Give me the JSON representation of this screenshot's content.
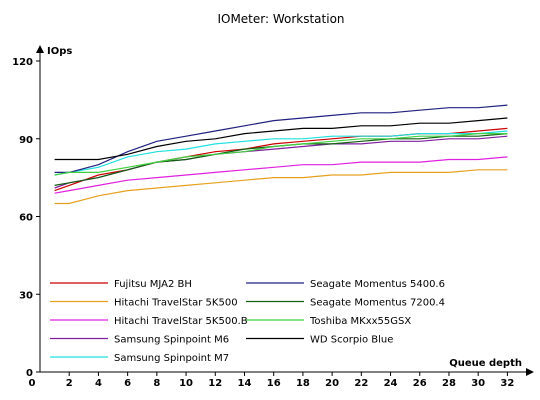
{
  "chart_data": {
    "type": "line",
    "title": "IOMeter: Workstation",
    "xlabel": "Queue depth",
    "ylabel": "IOps",
    "x": [
      1,
      2,
      4,
      6,
      8,
      10,
      12,
      14,
      16,
      18,
      20,
      22,
      24,
      26,
      28,
      30,
      32
    ],
    "xticks": [
      0,
      2,
      4,
      6,
      8,
      10,
      12,
      14,
      16,
      18,
      20,
      22,
      24,
      26,
      28,
      30,
      32
    ],
    "xlim": [
      0,
      33
    ],
    "yticks": [
      0,
      30,
      60,
      90,
      120
    ],
    "ylim": [
      0,
      120
    ],
    "grid": false,
    "legend_position": "lower-left inside",
    "series": [
      {
        "name": "Fujitsu MJA2 BH",
        "color": "#cc0000",
        "values": [
          70,
          72,
          76,
          78,
          81,
          83,
          85,
          86,
          88,
          89,
          90,
          91,
          91,
          92,
          92,
          93,
          94
        ]
      },
      {
        "name": "Hitachi TravelStar 5K500",
        "color": "#e6a020",
        "values": [
          65,
          65,
          68,
          70,
          71,
          72,
          73,
          74,
          75,
          75,
          76,
          76,
          77,
          77,
          77,
          78,
          78
        ]
      },
      {
        "name": "Hitachi TravelStar 5K500.B",
        "color": "#e020e0",
        "values": [
          69,
          70,
          72,
          74,
          75,
          76,
          77,
          78,
          79,
          80,
          80,
          81,
          81,
          81,
          82,
          82,
          83
        ]
      },
      {
        "name": "Samsung Spinpoint M6",
        "color": "#8020a0",
        "values": [
          71,
          73,
          75,
          78,
          81,
          82,
          84,
          85,
          86,
          87,
          88,
          88,
          89,
          89,
          90,
          90,
          91
        ]
      },
      {
        "name": "Samsung Spinpoint M7",
        "color": "#20e0e0",
        "values": [
          76,
          77,
          79,
          83,
          85,
          86,
          88,
          89,
          90,
          90,
          91,
          91,
          91,
          92,
          92,
          92,
          93
        ]
      },
      {
        "name": "Seagate Momentus 5400.6",
        "color": "#202080",
        "values": [
          77,
          77,
          80,
          85,
          89,
          91,
          93,
          95,
          97,
          98,
          99,
          100,
          100,
          101,
          102,
          102,
          103
        ]
      },
      {
        "name": "Seagate Momentus 7200.4",
        "color": "#106010",
        "values": [
          72,
          73,
          75,
          78,
          81,
          82,
          84,
          86,
          87,
          88,
          88,
          89,
          90,
          90,
          91,
          91,
          92
        ]
      },
      {
        "name": "Toshiba MKxx55GSX",
        "color": "#40d040",
        "values": [
          76,
          77,
          77,
          79,
          81,
          83,
          84,
          85,
          87,
          88,
          89,
          90,
          90,
          91,
          91,
          92,
          92
        ]
      },
      {
        "name": "WD Scorpio Blue",
        "color": "#000000",
        "values": [
          82,
          82,
          82,
          84,
          87,
          89,
          90,
          92,
          93,
          94,
          94,
          95,
          95,
          96,
          96,
          97,
          98
        ]
      }
    ]
  }
}
